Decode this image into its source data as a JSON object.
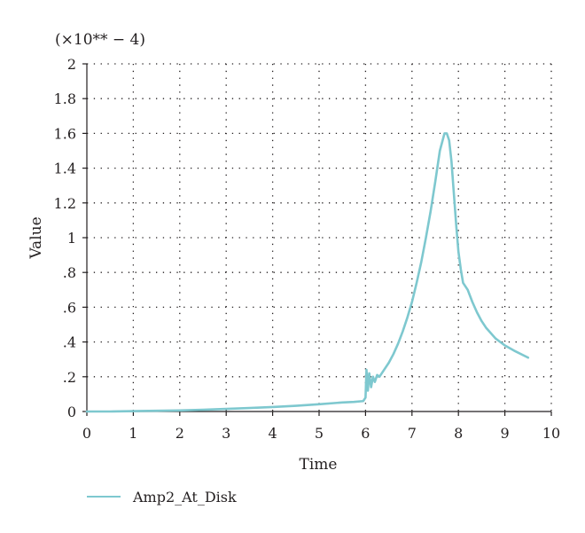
{
  "chart_data": {
    "type": "line",
    "multiplier_label": "(×10** − 4)",
    "xlabel": "Time",
    "ylabel": "Value",
    "xlim": [
      0,
      10
    ],
    "ylim": [
      0,
      2
    ],
    "x_ticks": [
      0,
      1,
      2,
      3,
      4,
      5,
      6,
      7,
      8,
      9,
      10
    ],
    "x_tick_labels": [
      "0",
      "1",
      "2",
      "3",
      "4",
      "5",
      "6",
      "7",
      "8",
      "9",
      "10"
    ],
    "y_ticks": [
      0,
      0.2,
      0.4,
      0.6,
      0.8,
      1.0,
      1.2,
      1.4,
      1.6,
      1.8,
      2.0
    ],
    "y_tick_labels": [
      "0",
      ".2",
      ".4",
      ".6",
      ".8",
      "1",
      "1.2",
      "1.4",
      "1.6",
      "1.8",
      "2"
    ],
    "grid": true,
    "legend_position": "bottom-left",
    "series": [
      {
        "name": "Amp2_At_Disk",
        "color": "#7ec8cf",
        "points": [
          [
            0,
            0.0
          ],
          [
            0.5,
            0.0
          ],
          [
            1.0,
            0.002
          ],
          [
            1.5,
            0.004
          ],
          [
            2.0,
            0.006
          ],
          [
            2.5,
            0.01
          ],
          [
            3.0,
            0.015
          ],
          [
            3.5,
            0.02
          ],
          [
            4.0,
            0.026
          ],
          [
            4.5,
            0.033
          ],
          [
            5.0,
            0.042
          ],
          [
            5.5,
            0.052
          ],
          [
            5.75,
            0.055
          ],
          [
            5.95,
            0.06
          ],
          [
            6.0,
            0.08
          ],
          [
            6.02,
            0.24
          ],
          [
            6.05,
            0.12
          ],
          [
            6.08,
            0.22
          ],
          [
            6.12,
            0.14
          ],
          [
            6.16,
            0.2
          ],
          [
            6.2,
            0.17
          ],
          [
            6.25,
            0.21
          ],
          [
            6.3,
            0.2
          ],
          [
            6.4,
            0.24
          ],
          [
            6.5,
            0.28
          ],
          [
            6.6,
            0.33
          ],
          [
            6.7,
            0.39
          ],
          [
            6.8,
            0.46
          ],
          [
            6.9,
            0.54
          ],
          [
            7.0,
            0.63
          ],
          [
            7.1,
            0.74
          ],
          [
            7.2,
            0.86
          ],
          [
            7.3,
            1.0
          ],
          [
            7.4,
            1.15
          ],
          [
            7.5,
            1.32
          ],
          [
            7.6,
            1.5
          ],
          [
            7.7,
            1.6
          ],
          [
            7.75,
            1.6
          ],
          [
            7.8,
            1.56
          ],
          [
            7.85,
            1.44
          ],
          [
            7.9,
            1.26
          ],
          [
            7.95,
            1.08
          ],
          [
            8.0,
            0.92
          ],
          [
            8.05,
            0.82
          ],
          [
            8.1,
            0.74
          ],
          [
            8.2,
            0.7
          ],
          [
            8.3,
            0.63
          ],
          [
            8.4,
            0.57
          ],
          [
            8.5,
            0.52
          ],
          [
            8.6,
            0.48
          ],
          [
            8.8,
            0.42
          ],
          [
            9.0,
            0.38
          ],
          [
            9.2,
            0.35
          ],
          [
            9.5,
            0.31
          ]
        ]
      }
    ]
  }
}
